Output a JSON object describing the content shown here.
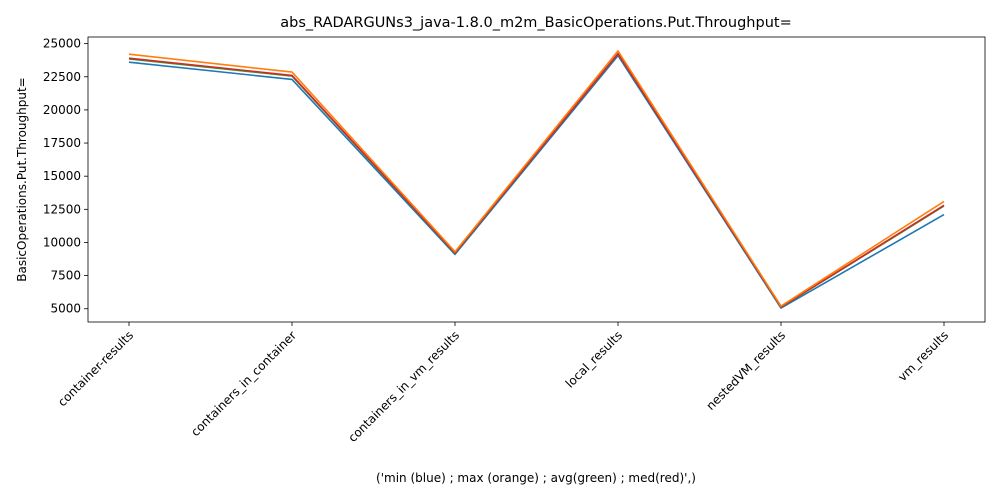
{
  "chart_data": {
    "type": "line",
    "title": "abs_RADARGUNs3_java-1.8.0_m2m_BasicOperations.Put.Throughput=",
    "xlabel": "('min (blue) ; max (orange) ; avg(green) ; med(red)',)",
    "ylabel": "BasicOperations.Put.Throughput=",
    "categories": [
      "container-results",
      "containers_in_container",
      "containers_in_vm_results",
      "local_results",
      "nestedVM_results",
      "vm_results"
    ],
    "ylim": [
      4000,
      25500
    ],
    "yticks": [
      5000,
      7500,
      10000,
      12500,
      15000,
      17500,
      20000,
      22500,
      25000
    ],
    "ytick_labels": [
      "5000",
      "7500",
      "10000",
      "12500",
      "15000",
      "17500",
      "20000",
      "22500",
      "25000"
    ],
    "grid": false,
    "series": [
      {
        "color": "#1f77b4",
        "values": [
          23600,
          22300,
          9100,
          24100,
          5050,
          12100
        ]
      },
      {
        "color": "#2ca02c",
        "values": [
          23850,
          22550,
          9200,
          24250,
          5120,
          12750
        ]
      },
      {
        "color": "#d62728",
        "values": [
          23900,
          22600,
          9220,
          24250,
          5130,
          12800
        ]
      },
      {
        "color": "#ff7f0e",
        "values": [
          24200,
          22850,
          9300,
          24450,
          5200,
          13100
        ]
      }
    ]
  }
}
